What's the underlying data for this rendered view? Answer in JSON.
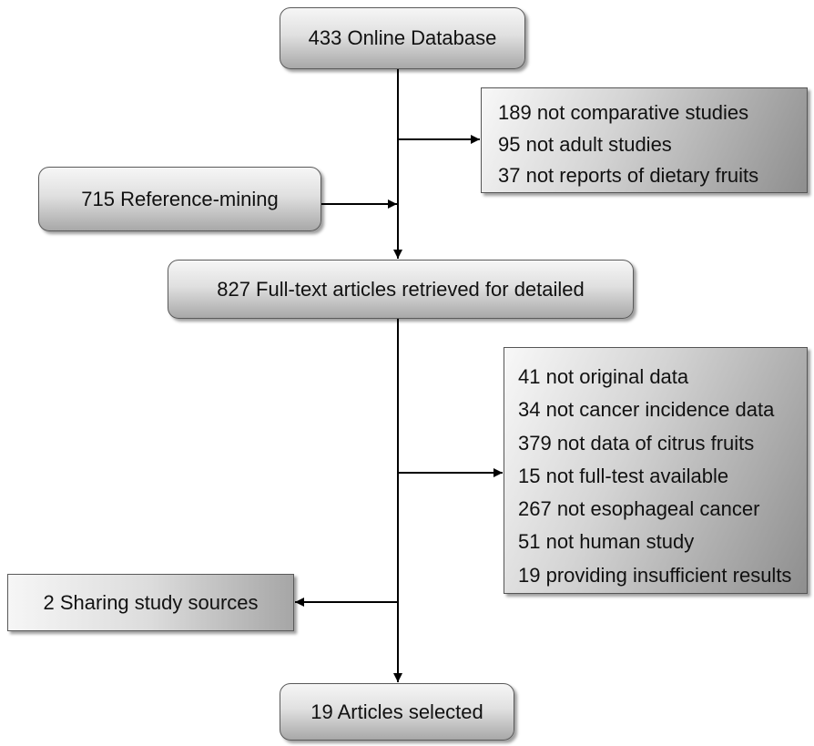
{
  "nodes": {
    "online_database": "433 Online Database",
    "reference_mining": "715 Reference-mining",
    "full_text": "827 Full-text articles retrieved for detailed",
    "sharing_sources": "2 Sharing study sources",
    "selected": "19 Articles selected"
  },
  "exclusions_first": [
    "189 not comparative studies",
    "95 not adult studies",
    "37 not reports of dietary fruits"
  ],
  "exclusions_second": [
    "41 not original data",
    "34 not cancer incidence data",
    "379 not data of citrus fruits",
    "15 not full-test available",
    "267 not esophageal cancer",
    "51 not human study",
    "19 providing insufficient results"
  ]
}
